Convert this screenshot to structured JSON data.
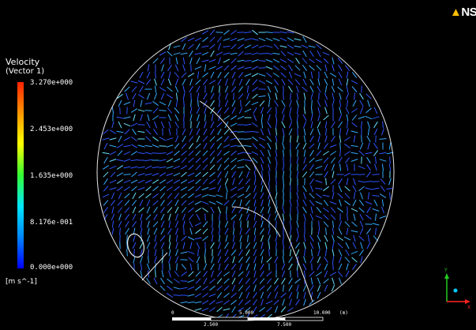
{
  "legend": {
    "title": "Velocity",
    "subtitle": "(Vector 1)",
    "ticks": [
      "3.270e+000",
      "2.453e+000",
      "1.635e+000",
      "8.176e-001",
      "0.000e+000"
    ],
    "units": "[m s^-1]",
    "max_value": 3.27,
    "min_value": 0.0
  },
  "brand": {
    "text": "ANSYS"
  },
  "scale_bar": {
    "labels_top": [
      "0",
      "5.000",
      "10.000",
      "(m)"
    ],
    "labels_bottom": [
      "2.500",
      "7.500"
    ]
  },
  "triad": {
    "y_label": "Y",
    "x_label": "X",
    "colors": {
      "y": "#22cc22",
      "x": "#ff2222",
      "z": "#00ccff"
    }
  },
  "colors": {
    "background": "#000000",
    "vector_primary": "#2d55ff",
    "vector_secondary": "#33aaff",
    "vector_highlight": "#66e0ff",
    "outline": "#e8e8e8"
  }
}
